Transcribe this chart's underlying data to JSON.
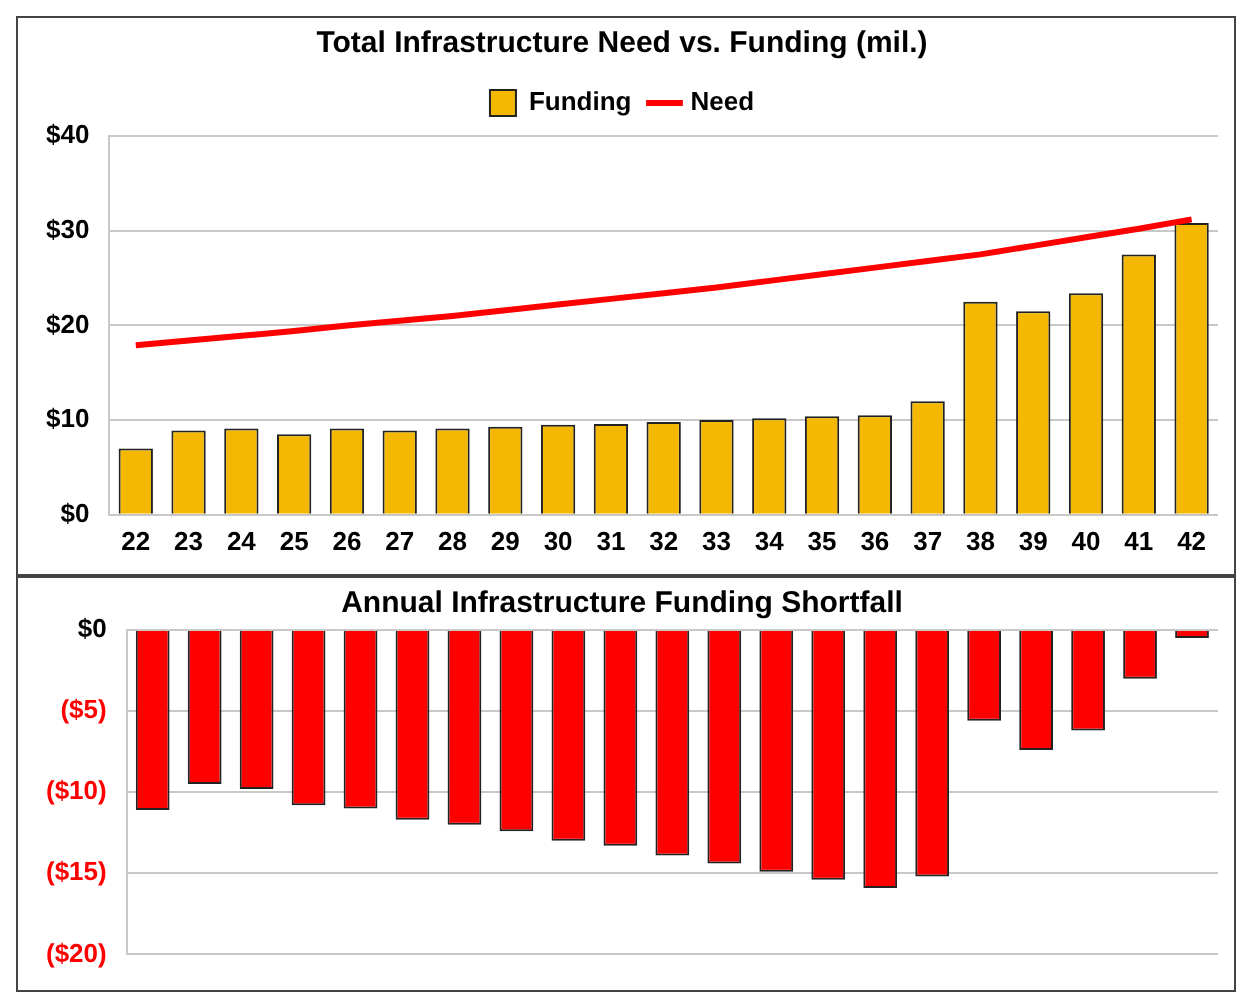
{
  "chart_data": [
    {
      "type": "bar",
      "title": "Total Infrastructure Need vs. Funding (mil.)",
      "categories": [
        "22",
        "23",
        "24",
        "25",
        "26",
        "27",
        "28",
        "29",
        "30",
        "31",
        "32",
        "33",
        "34",
        "35",
        "36",
        "37",
        "38",
        "39",
        "40",
        "41",
        "42"
      ],
      "series": [
        {
          "name": "Funding",
          "type": "bar",
          "color": "#f5b800",
          "values": [
            7.0,
            8.9,
            9.1,
            8.5,
            9.1,
            8.9,
            9.1,
            9.3,
            9.5,
            9.6,
            9.8,
            10.0,
            10.2,
            10.4,
            10.5,
            12.0,
            22.5,
            21.5,
            23.4,
            27.5,
            30.8
          ]
        },
        {
          "name": "Need",
          "type": "line",
          "color": "#ff0000",
          "values": [
            17.9,
            18.4,
            18.9,
            19.4,
            20.0,
            20.5,
            21.0,
            21.6,
            22.2,
            22.8,
            23.4,
            24.0,
            24.7,
            25.4,
            26.1,
            26.8,
            27.5,
            28.4,
            29.3,
            30.2,
            31.2
          ]
        }
      ],
      "ylim": [
        0,
        40
      ],
      "yticks": [
        {
          "value": 0,
          "label": "$0"
        },
        {
          "value": 10,
          "label": "$10"
        },
        {
          "value": 20,
          "label": "$20"
        },
        {
          "value": 30,
          "label": "$30"
        },
        {
          "value": 40,
          "label": "$40"
        }
      ],
      "grid": "y",
      "legend": "top",
      "marker": "none"
    },
    {
      "type": "bar",
      "title": "Annual Infrastructure Funding Shortfall",
      "categories": [
        "22",
        "23",
        "24",
        "25",
        "26",
        "27",
        "28",
        "29",
        "30",
        "31",
        "32",
        "33",
        "34",
        "35",
        "36",
        "37",
        "38",
        "39",
        "40",
        "41",
        "42"
      ],
      "series": [
        {
          "color": "#ff0000",
          "values": [
            -11.1,
            -9.5,
            -9.8,
            -10.8,
            -11.0,
            -11.7,
            -12.0,
            -12.4,
            -13.0,
            -13.3,
            -13.9,
            -14.4,
            -14.9,
            -15.4,
            -15.9,
            -15.2,
            -5.6,
            -7.4,
            -6.2,
            -3.0,
            -0.5
          ]
        }
      ],
      "ylim": [
        -20,
        0
      ],
      "yticks": [
        {
          "value": -20,
          "label": "($20)"
        },
        {
          "value": -15,
          "label": "($15)"
        },
        {
          "value": -10,
          "label": "($10)"
        },
        {
          "value": -5,
          "label": "($5)"
        },
        {
          "value": 0,
          "label": "$0"
        }
      ],
      "grid": "y",
      "tick_labels": "y"
    }
  ]
}
